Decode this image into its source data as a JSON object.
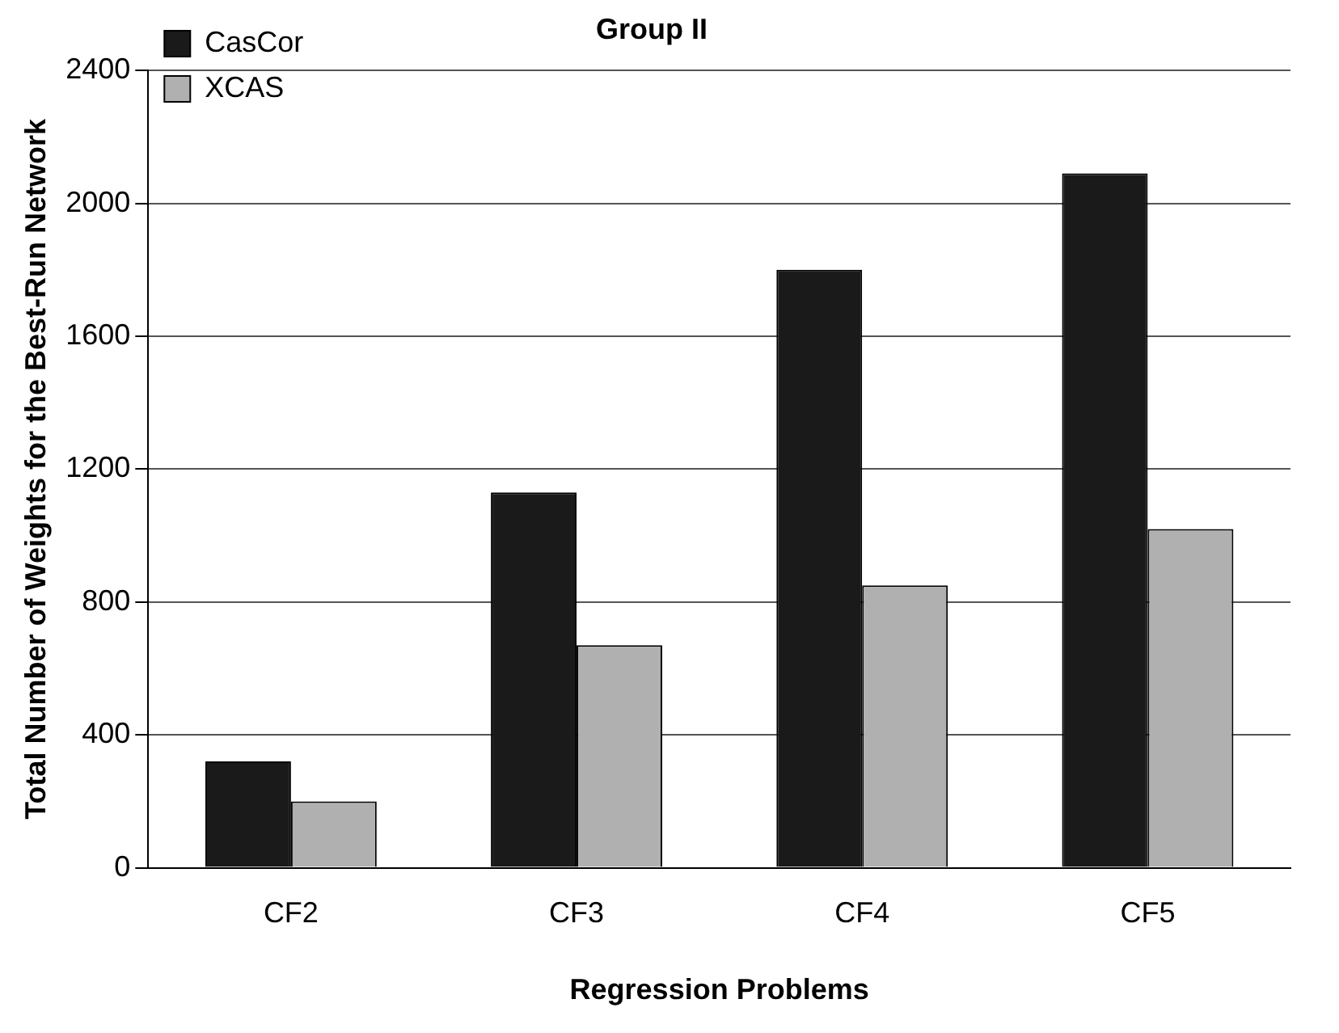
{
  "chart_data": {
    "type": "bar",
    "title": "Group II",
    "xlabel": "Regression Problems",
    "ylabel": "Total Number of Weights for the Best-Run Network",
    "categories": [
      "CF2",
      "CF3",
      "CF4",
      "CF5"
    ],
    "series": [
      {
        "name": "CasCor",
        "color": "#1a1a1a",
        "values": [
          320,
          1130,
          1800,
          2090
        ]
      },
      {
        "name": "XCAS",
        "color": "#b0b0b0",
        "values": [
          200,
          670,
          850,
          1020
        ]
      }
    ],
    "ylim": [
      0,
      2400
    ],
    "yticks": [
      0,
      400,
      800,
      1200,
      1600,
      2000,
      2400
    ],
    "grid": "y",
    "legend": "top left"
  }
}
